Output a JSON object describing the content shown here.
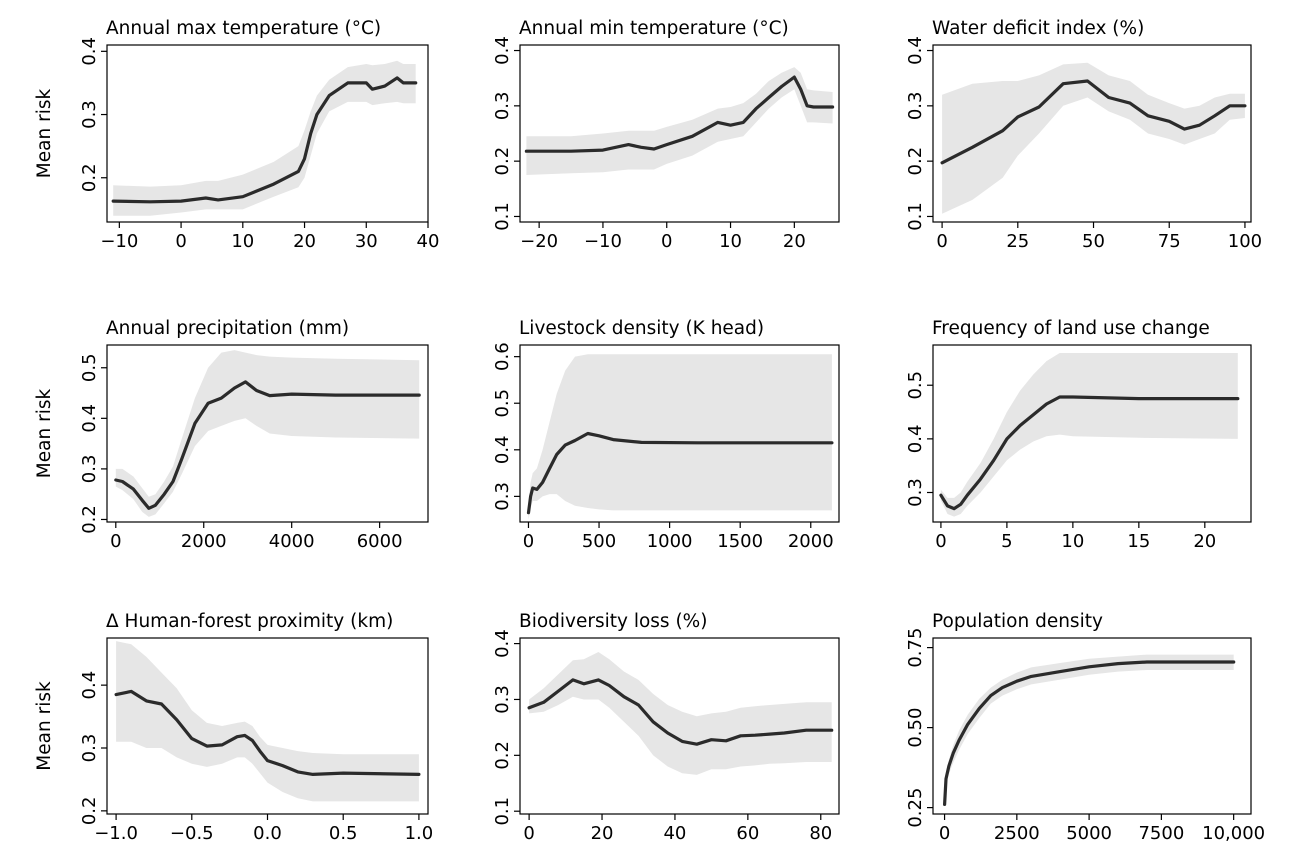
{
  "figure": {
    "ylabel_text": "Mean risk",
    "line_color": "#2b2b2b",
    "band_color": "#e6e6e6"
  },
  "chart_data": [
    {
      "type": "line",
      "title": "Annual max temperature (°C)",
      "ylabel": "Mean risk",
      "xlim": [
        -12,
        40
      ],
      "ylim": [
        0.13,
        0.41
      ],
      "xticks": [
        -10,
        0,
        10,
        20,
        30,
        40
      ],
      "xtick_labels": [
        "−10",
        "0",
        "10",
        "20",
        "30",
        "40"
      ],
      "yticks": [
        0.2,
        0.3,
        0.4
      ],
      "ytick_labels": [
        "0.2",
        "0.3",
        "0.4"
      ],
      "x": [
        -11,
        -5,
        0,
        4,
        6,
        10,
        15,
        19,
        20,
        21,
        22,
        24,
        27,
        30,
        31,
        33,
        35,
        36,
        38
      ],
      "y": [
        0.163,
        0.162,
        0.163,
        0.168,
        0.165,
        0.17,
        0.19,
        0.21,
        0.23,
        0.27,
        0.3,
        0.33,
        0.35,
        0.35,
        0.34,
        0.345,
        0.358,
        0.35,
        0.35
      ],
      "lower": [
        0.14,
        0.14,
        0.145,
        0.15,
        0.15,
        0.15,
        0.17,
        0.185,
        0.2,
        0.235,
        0.27,
        0.305,
        0.32,
        0.32,
        0.315,
        0.318,
        0.32,
        0.318,
        0.318
      ],
      "upper": [
        0.188,
        0.186,
        0.188,
        0.195,
        0.195,
        0.205,
        0.225,
        0.25,
        0.275,
        0.305,
        0.33,
        0.355,
        0.375,
        0.38,
        0.378,
        0.38,
        0.385,
        0.38,
        0.38
      ]
    },
    {
      "type": "line",
      "title": "Annual min temperature (°C)",
      "ylabel": "",
      "xlim": [
        -23,
        27
      ],
      "ylim": [
        0.09,
        0.41
      ],
      "xticks": [
        -20,
        -10,
        0,
        10,
        20
      ],
      "xtick_labels": [
        "−20",
        "−10",
        "0",
        "10",
        "20"
      ],
      "yticks": [
        0.1,
        0.2,
        0.3,
        0.4
      ],
      "ytick_labels": [
        "0.1",
        "0.2",
        "0.3",
        "0.4"
      ],
      "x": [
        -22,
        -15,
        -10,
        -6,
        -4,
        -2,
        0,
        4,
        8,
        10,
        12,
        14,
        16,
        18,
        20,
        21,
        22,
        23,
        26
      ],
      "y": [
        0.218,
        0.218,
        0.22,
        0.23,
        0.225,
        0.222,
        0.23,
        0.245,
        0.27,
        0.265,
        0.27,
        0.295,
        0.315,
        0.335,
        0.352,
        0.33,
        0.3,
        0.298,
        0.298
      ],
      "lower": [
        0.175,
        0.178,
        0.18,
        0.185,
        0.185,
        0.185,
        0.195,
        0.21,
        0.235,
        0.24,
        0.245,
        0.27,
        0.295,
        0.315,
        0.33,
        0.3,
        0.27,
        0.27,
        0.268
      ],
      "upper": [
        0.245,
        0.245,
        0.25,
        0.255,
        0.255,
        0.255,
        0.262,
        0.275,
        0.295,
        0.298,
        0.305,
        0.322,
        0.345,
        0.36,
        0.37,
        0.36,
        0.33,
        0.328,
        0.325
      ]
    },
    {
      "type": "line",
      "title": "Water deficit index (%)",
      "ylabel": "",
      "xlim": [
        -3,
        102
      ],
      "ylim": [
        0.09,
        0.41
      ],
      "xticks": [
        0,
        25,
        50,
        75,
        100
      ],
      "xtick_labels": [
        "0",
        "25",
        "50",
        "75",
        "100"
      ],
      "yticks": [
        0.1,
        0.2,
        0.3,
        0.4
      ],
      "ytick_labels": [
        "0.1",
        "0.2",
        "0.3",
        "0.4"
      ],
      "x": [
        0,
        10,
        20,
        25,
        32,
        40,
        48,
        55,
        62,
        68,
        75,
        80,
        85,
        90,
        95,
        100
      ],
      "y": [
        0.197,
        0.225,
        0.255,
        0.28,
        0.298,
        0.34,
        0.345,
        0.315,
        0.305,
        0.282,
        0.272,
        0.258,
        0.265,
        0.282,
        0.3,
        0.3
      ],
      "lower": [
        0.105,
        0.13,
        0.17,
        0.21,
        0.25,
        0.3,
        0.315,
        0.29,
        0.275,
        0.25,
        0.24,
        0.23,
        0.24,
        0.25,
        0.275,
        0.278
      ],
      "upper": [
        0.32,
        0.34,
        0.345,
        0.345,
        0.355,
        0.375,
        0.378,
        0.355,
        0.345,
        0.32,
        0.305,
        0.295,
        0.3,
        0.315,
        0.322,
        0.322
      ]
    },
    {
      "type": "line",
      "title": "Annual precipitation (mm)",
      "ylabel": "Mean risk",
      "xlim": [
        -200,
        7100
      ],
      "ylim": [
        0.195,
        0.545
      ],
      "xticks": [
        0,
        2000,
        4000,
        6000
      ],
      "xtick_labels": [
        "0",
        "2000",
        "4000",
        "6000"
      ],
      "yticks": [
        0.2,
        0.3,
        0.4,
        0.5
      ],
      "ytick_labels": [
        "0.2",
        "0.3",
        "0.4",
        "0.5"
      ],
      "x": [
        0,
        150,
        400,
        600,
        750,
        900,
        1100,
        1300,
        1500,
        1800,
        2100,
        2400,
        2700,
        2950,
        3200,
        3500,
        4000,
        5000,
        6900
      ],
      "y": [
        0.278,
        0.275,
        0.26,
        0.238,
        0.222,
        0.228,
        0.25,
        0.275,
        0.32,
        0.39,
        0.43,
        0.44,
        0.46,
        0.472,
        0.455,
        0.445,
        0.448,
        0.446,
        0.446
      ],
      "lower": [
        0.265,
        0.258,
        0.24,
        0.215,
        0.205,
        0.21,
        0.232,
        0.255,
        0.29,
        0.345,
        0.375,
        0.385,
        0.395,
        0.4,
        0.385,
        0.37,
        0.365,
        0.362,
        0.36
      ],
      "upper": [
        0.3,
        0.3,
        0.285,
        0.262,
        0.245,
        0.25,
        0.275,
        0.305,
        0.36,
        0.44,
        0.5,
        0.53,
        0.535,
        0.53,
        0.525,
        0.522,
        0.52,
        0.518,
        0.515
      ]
    },
    {
      "type": "line",
      "title": "Livestock density (K head)",
      "ylabel": "",
      "xlim": [
        -60,
        2200
      ],
      "ylim": [
        0.245,
        0.625
      ],
      "xticks": [
        0,
        500,
        1000,
        1500,
        2000
      ],
      "xtick_labels": [
        "0",
        "500",
        "1000",
        "1500",
        "2000"
      ],
      "yticks": [
        0.3,
        0.4,
        0.5,
        0.6
      ],
      "ytick_labels": [
        "0.3",
        "0.4",
        "0.5",
        "0.6"
      ],
      "x": [
        0,
        15,
        30,
        60,
        100,
        150,
        200,
        260,
        330,
        420,
        500,
        600,
        800,
        1200,
        2150
      ],
      "y": [
        0.265,
        0.3,
        0.318,
        0.315,
        0.33,
        0.36,
        0.39,
        0.41,
        0.42,
        0.435,
        0.43,
        0.422,
        0.416,
        0.415,
        0.415
      ],
      "lower": [
        0.25,
        0.275,
        0.29,
        0.29,
        0.3,
        0.305,
        0.305,
        0.29,
        0.28,
        0.275,
        0.272,
        0.27,
        0.27,
        0.27,
        0.27
      ],
      "upper": [
        0.285,
        0.33,
        0.35,
        0.36,
        0.4,
        0.46,
        0.52,
        0.57,
        0.6,
        0.605,
        0.605,
        0.605,
        0.605,
        0.605,
        0.605
      ]
    },
    {
      "type": "line",
      "title": "Frequency of land use change",
      "ylabel": "",
      "xlim": [
        -0.6,
        23.5
      ],
      "ylim": [
        0.245,
        0.575
      ],
      "xticks": [
        0,
        5,
        10,
        15,
        20
      ],
      "xtick_labels": [
        "0",
        "5",
        "10",
        "15",
        "20"
      ],
      "yticks": [
        0.3,
        0.4,
        0.5
      ],
      "ytick_labels": [
        "0.3",
        "0.4",
        "0.5"
      ],
      "x": [
        0,
        0.5,
        1,
        1.5,
        2,
        3,
        4,
        5,
        6,
        7,
        8,
        9,
        10,
        15,
        22.5
      ],
      "y": [
        0.295,
        0.275,
        0.27,
        0.278,
        0.295,
        0.325,
        0.36,
        0.4,
        0.425,
        0.445,
        0.465,
        0.478,
        0.478,
        0.475,
        0.475
      ],
      "lower": [
        0.285,
        0.26,
        0.255,
        0.26,
        0.275,
        0.3,
        0.33,
        0.36,
        0.38,
        0.395,
        0.405,
        0.408,
        0.405,
        0.402,
        0.4
      ],
      "upper": [
        0.305,
        0.29,
        0.29,
        0.3,
        0.32,
        0.355,
        0.4,
        0.45,
        0.49,
        0.52,
        0.545,
        0.56,
        0.56,
        0.56,
        0.56
      ]
    },
    {
      "type": "line",
      "title": "Δ Human-forest proximity (km)",
      "ylabel": "Mean risk",
      "xlim": [
        -1.06,
        1.06
      ],
      "ylim": [
        0.195,
        0.475
      ],
      "xticks": [
        -1.0,
        -0.5,
        0.0,
        0.5,
        1.0
      ],
      "xtick_labels": [
        "−1.0",
        "−0.5",
        "0.0",
        "0.5",
        "1.0"
      ],
      "yticks": [
        0.2,
        0.3,
        0.4
      ],
      "ytick_labels": [
        "0.2",
        "0.3",
        "0.4"
      ],
      "x": [
        -1.0,
        -0.9,
        -0.8,
        -0.7,
        -0.6,
        -0.5,
        -0.4,
        -0.3,
        -0.2,
        -0.15,
        -0.1,
        -0.05,
        0.0,
        0.1,
        0.2,
        0.3,
        0.5,
        1.0
      ],
      "y": [
        0.385,
        0.39,
        0.375,
        0.37,
        0.345,
        0.315,
        0.303,
        0.305,
        0.318,
        0.32,
        0.312,
        0.295,
        0.28,
        0.272,
        0.262,
        0.258,
        0.26,
        0.258
      ],
      "lower": [
        0.31,
        0.31,
        0.3,
        0.3,
        0.285,
        0.275,
        0.27,
        0.275,
        0.285,
        0.285,
        0.275,
        0.26,
        0.245,
        0.23,
        0.22,
        0.215,
        0.215,
        0.215
      ],
      "upper": [
        0.47,
        0.465,
        0.445,
        0.42,
        0.395,
        0.36,
        0.34,
        0.335,
        0.34,
        0.342,
        0.335,
        0.318,
        0.305,
        0.3,
        0.295,
        0.292,
        0.29,
        0.29
      ]
    },
    {
      "type": "line",
      "title": "Biodiversity loss (%)",
      "ylabel": "",
      "xlim": [
        -2.5,
        85
      ],
      "ylim": [
        0.095,
        0.41
      ],
      "xticks": [
        0,
        20,
        40,
        60,
        80
      ],
      "xtick_labels": [
        "0",
        "20",
        "40",
        "60",
        "80"
      ],
      "yticks": [
        0.1,
        0.2,
        0.3,
        0.4
      ],
      "ytick_labels": [
        "0.1",
        "0.2",
        "0.3",
        "0.4"
      ],
      "x": [
        0,
        4,
        8,
        12,
        15,
        19,
        22,
        26,
        30,
        34,
        38,
        42,
        46,
        50,
        54,
        58,
        62,
        66,
        70,
        76,
        83
      ],
      "y": [
        0.285,
        0.295,
        0.315,
        0.335,
        0.328,
        0.335,
        0.325,
        0.305,
        0.29,
        0.26,
        0.24,
        0.225,
        0.22,
        0.228,
        0.226,
        0.235,
        0.236,
        0.238,
        0.24,
        0.245,
        0.245
      ],
      "lower": [
        0.275,
        0.278,
        0.29,
        0.305,
        0.3,
        0.3,
        0.285,
        0.26,
        0.235,
        0.2,
        0.18,
        0.168,
        0.165,
        0.175,
        0.175,
        0.18,
        0.182,
        0.185,
        0.186,
        0.188,
        0.188
      ],
      "upper": [
        0.3,
        0.32,
        0.345,
        0.37,
        0.372,
        0.385,
        0.372,
        0.35,
        0.335,
        0.31,
        0.29,
        0.278,
        0.27,
        0.275,
        0.278,
        0.285,
        0.288,
        0.29,
        0.292,
        0.295,
        0.295
      ]
    },
    {
      "type": "line",
      "title": "Population density",
      "ylabel": "",
      "xlim": [
        -400,
        10600
      ],
      "ylim": [
        0.23,
        0.78
      ],
      "xticks": [
        0,
        2500,
        5000,
        7500,
        10000
      ],
      "xtick_labels": [
        "0",
        "2500",
        "5000",
        "7500",
        "10,000"
      ],
      "yticks": [
        0.25,
        0.5,
        0.75
      ],
      "ytick_labels": [
        "0.25",
        "0.50",
        "0.75"
      ],
      "x": [
        0,
        50,
        150,
        300,
        500,
        800,
        1200,
        1600,
        2000,
        2500,
        3000,
        4000,
        5000,
        6000,
        7000,
        8000,
        10000
      ],
      "y": [
        0.26,
        0.34,
        0.38,
        0.42,
        0.46,
        0.51,
        0.56,
        0.6,
        0.625,
        0.645,
        0.66,
        0.675,
        0.69,
        0.7,
        0.705,
        0.705,
        0.705
      ],
      "lower": [
        0.25,
        0.32,
        0.355,
        0.39,
        0.43,
        0.48,
        0.53,
        0.575,
        0.6,
        0.62,
        0.635,
        0.65,
        0.665,
        0.675,
        0.68,
        0.68,
        0.68
      ],
      "upper": [
        0.28,
        0.36,
        0.4,
        0.445,
        0.49,
        0.54,
        0.59,
        0.625,
        0.65,
        0.672,
        0.688,
        0.702,
        0.715,
        0.722,
        0.728,
        0.728,
        0.728
      ]
    }
  ]
}
